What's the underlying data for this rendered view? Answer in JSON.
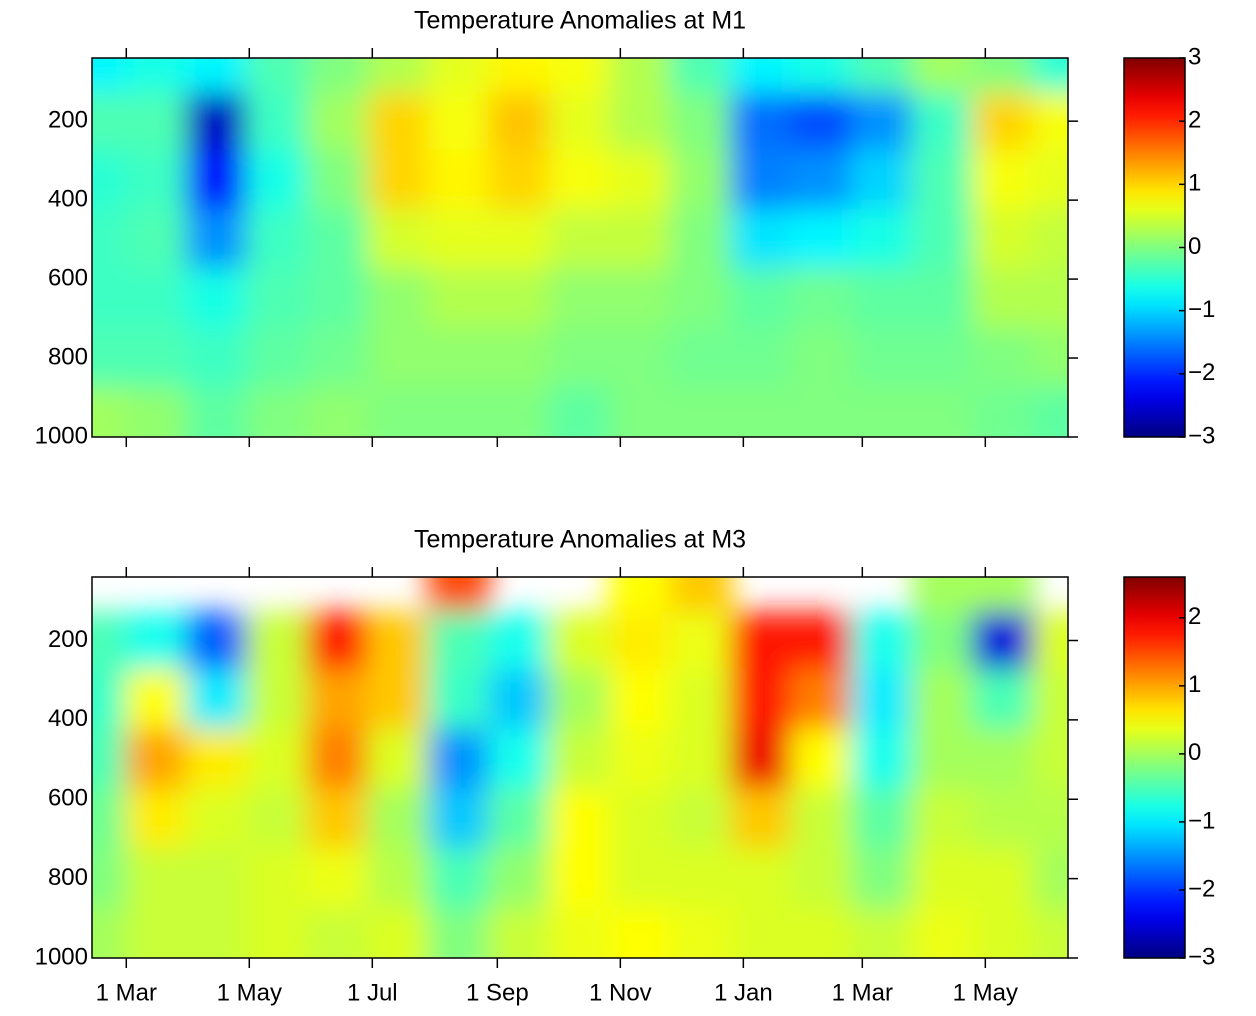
{
  "chart_data": [
    {
      "type": "contour",
      "title": "Temperature Anomalies at M1",
      "xlim": [
        -17,
        467
      ],
      "ylim": [
        1000,
        40
      ],
      "clim": [
        -3,
        3
      ],
      "xticks": [
        0,
        61,
        122,
        184,
        245,
        306,
        365,
        426
      ],
      "yticks": [
        200,
        400,
        600,
        800,
        1000
      ],
      "cticks": [
        3,
        2,
        1,
        0,
        {
          "value": -1,
          "label": "−1"
        },
        {
          "value": -2,
          "label": "−2"
        },
        {
          "value": -3,
          "label": "−3"
        }
      ],
      "x": [
        -15,
        15,
        45,
        75,
        105,
        135,
        165,
        195,
        225,
        255,
        285,
        315,
        345,
        375,
        405,
        435,
        465
      ],
      "y": [
        60,
        200,
        350,
        500,
        650,
        800,
        950
      ],
      "z": [
        [
          -0.8,
          -0.6,
          -0.8,
          -0.3,
          0,
          0.3,
          0.6,
          0.8,
          0.7,
          0.3,
          -0.3,
          -0.8,
          -0.6,
          -0.3,
          0.2,
          0,
          -0.5
        ],
        [
          -0.3,
          -0.3,
          -2.6,
          -0.4,
          0.2,
          1,
          0.7,
          1.1,
          0.6,
          0.3,
          0,
          -1.6,
          -1.8,
          -1.4,
          -0.4,
          1,
          0.7
        ],
        [
          -0.5,
          -0.4,
          -2.2,
          -0.6,
          0,
          1,
          0.8,
          1,
          0.7,
          0.6,
          0.1,
          -1.5,
          -1.4,
          -1,
          -0.3,
          0.7,
          0.6
        ],
        [
          -0.4,
          -0.3,
          -1.4,
          -0.4,
          -0.2,
          0.5,
          0.6,
          0.6,
          0.4,
          0.4,
          0,
          -0.9,
          -0.8,
          -0.6,
          -0.3,
          0.5,
          0.4
        ],
        [
          -0.4,
          -0.4,
          -0.6,
          -0.3,
          -0.2,
          0.1,
          0.3,
          0.3,
          0.1,
          0.1,
          0,
          -0.2,
          -0.1,
          -0.2,
          -0.2,
          0.3,
          0.3
        ],
        [
          -0.3,
          -0.3,
          -0.4,
          -0.2,
          -0.1,
          0.1,
          0.1,
          0.1,
          0,
          0,
          -0.1,
          -0.1,
          0,
          -0.1,
          -0.1,
          0,
          0.1
        ],
        [
          0.2,
          0.1,
          -0.2,
          0,
          0.1,
          0,
          0,
          0,
          -0.2,
          0,
          0,
          0,
          0,
          0,
          0,
          -0.1,
          -0.2
        ]
      ]
    },
    {
      "type": "contour",
      "title": "Temperature Anomalies at M3",
      "xlim": [
        -17,
        467
      ],
      "ylim": [
        1000,
        40
      ],
      "clim": [
        -3,
        2.6
      ],
      "xticks": [
        {
          "value": 0,
          "label": "1 Mar"
        },
        {
          "value": 61,
          "label": "1 May"
        },
        {
          "value": 122,
          "label": "1 Jul"
        },
        {
          "value": 184,
          "label": "1 Sep"
        },
        {
          "value": 245,
          "label": "1 Nov"
        },
        {
          "value": 306,
          "label": "1 Jan"
        },
        {
          "value": 365,
          "label": "1 Mar"
        },
        {
          "value": 426,
          "label": "1 May"
        }
      ],
      "yticks": [
        200,
        400,
        600,
        800,
        1000
      ],
      "cticks": [
        2,
        1,
        0,
        {
          "value": -1,
          "label": "−1"
        },
        {
          "value": -2,
          "label": "−2"
        },
        {
          "value": -3,
          "label": "−3"
        }
      ],
      "x": [
        -15,
        15,
        45,
        75,
        105,
        135,
        165,
        195,
        225,
        255,
        285,
        315,
        345,
        375,
        405,
        435,
        465
      ],
      "y": [
        60,
        200,
        350,
        500,
        650,
        800,
        950
      ],
      "z": [
        [
          null,
          null,
          null,
          null,
          null,
          null,
          1.5,
          null,
          null,
          0.5,
          0.8,
          null,
          null,
          null,
          0,
          0,
          null
        ],
        [
          -0.5,
          -0.8,
          -1.8,
          0.2,
          1.8,
          0.8,
          -0.5,
          -0.8,
          0.3,
          0.6,
          0.4,
          1.8,
          1.8,
          -0.8,
          -0.2,
          -2.5,
          0.3
        ],
        [
          -0.6,
          0.5,
          -1,
          0.2,
          1,
          0.8,
          -0.6,
          -1.2,
          0,
          0.5,
          0.3,
          1.8,
          1.2,
          -1,
          0,
          -0.5,
          0.2
        ],
        [
          -0.5,
          1,
          0.6,
          0.3,
          1.2,
          0.3,
          -1.5,
          -0.8,
          0.2,
          0.4,
          0.3,
          2,
          0.5,
          -0.8,
          0,
          0,
          0.2
        ],
        [
          -0.3,
          0.6,
          0.3,
          0.2,
          0.8,
          0,
          -1.2,
          -0.4,
          0.5,
          0.3,
          0.2,
          0.8,
          0.2,
          -0.4,
          0.2,
          0.1,
          0.1
        ],
        [
          -0.2,
          0.2,
          0.2,
          0.3,
          0.4,
          0.1,
          -0.5,
          -0.1,
          0.5,
          0.3,
          0.3,
          0.3,
          0.2,
          -0.2,
          0.3,
          0.3,
          0
        ],
        [
          0,
          0.2,
          0.2,
          0.3,
          0.2,
          0.3,
          -0.2,
          0.2,
          0.4,
          0.5,
          0.4,
          0.3,
          0.3,
          0.2,
          0.4,
          0.3,
          0.2
        ]
      ]
    }
  ]
}
